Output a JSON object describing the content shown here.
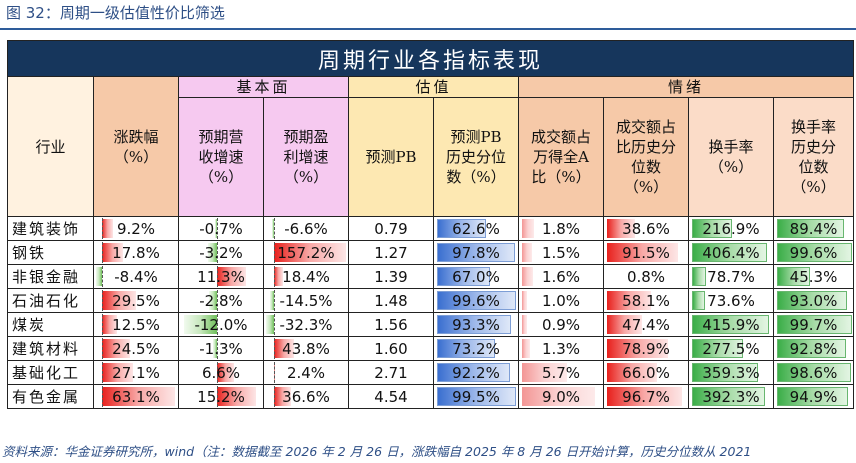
{
  "caption": "图 32：周期一级估值性价比筛选",
  "table": {
    "title": "周期行业各指标表现",
    "groups": {
      "fundamental": "基本面",
      "valuation": "估值",
      "sentiment": "情绪"
    },
    "columns": {
      "industry": "行业",
      "change": "涨跌幅（%）",
      "rev_growth": "预期营收增速（%）",
      "profit_growth": "预期盈利增速（%）",
      "pb": "预测PB",
      "pb_pct": "预测PB历史分位数（%）",
      "turnover_share": "成交额占万得全A比（%）",
      "turnover_share_pct": "成交额占比历史分位数（%）",
      "turnover_rate": "换手率（%）",
      "turnover_rate_pct": "换手率历史分位数（%）"
    },
    "rows": [
      {
        "industry": "建筑装饰",
        "change": "9.2%",
        "rev_growth": "-0.7%",
        "profit_growth": "-6.6%",
        "pb": "0.79",
        "pb_pct": "62.6%",
        "turnover_share": "1.8%",
        "turnover_share_pct": "38.6%",
        "turnover_rate": "216.9%",
        "turnover_rate_pct": "89.4%"
      },
      {
        "industry": "钢铁",
        "change": "17.8%",
        "rev_growth": "-3.2%",
        "profit_growth": "157.2%",
        "pb": "1.27",
        "pb_pct": "97.8%",
        "turnover_share": "1.5%",
        "turnover_share_pct": "91.5%",
        "turnover_rate": "406.4%",
        "turnover_rate_pct": "99.6%"
      },
      {
        "industry": "非银金融",
        "change": "-8.4%",
        "rev_growth": "11.3%",
        "profit_growth": "18.4%",
        "pb": "1.39",
        "pb_pct": "67.0%",
        "turnover_share": "1.6%",
        "turnover_share_pct": "0.8%",
        "turnover_rate": "78.7%",
        "turnover_rate_pct": "45.3%"
      },
      {
        "industry": "石油石化",
        "change": "29.5%",
        "rev_growth": "-2.8%",
        "profit_growth": "-14.5%",
        "pb": "1.48",
        "pb_pct": "99.6%",
        "turnover_share": "1.0%",
        "turnover_share_pct": "58.1%",
        "turnover_rate": "73.6%",
        "turnover_rate_pct": "93.0%"
      },
      {
        "industry": "煤炭",
        "change": "12.5%",
        "rev_growth": "-12.0%",
        "profit_growth": "-32.3%",
        "pb": "1.56",
        "pb_pct": "93.3%",
        "turnover_share": "0.9%",
        "turnover_share_pct": "47.4%",
        "turnover_rate": "415.9%",
        "turnover_rate_pct": "99.7%"
      },
      {
        "industry": "建筑材料",
        "change": "24.5%",
        "rev_growth": "-1.3%",
        "profit_growth": "43.8%",
        "pb": "1.60",
        "pb_pct": "73.2%",
        "turnover_share": "1.3%",
        "turnover_share_pct": "78.9%",
        "turnover_rate": "277.5%",
        "turnover_rate_pct": "92.8%"
      },
      {
        "industry": "基础化工",
        "change": "27.1%",
        "rev_growth": "6.6%",
        "profit_growth": "2.4%",
        "pb": "2.71",
        "pb_pct": "92.2%",
        "turnover_share": "5.7%",
        "turnover_share_pct": "66.0%",
        "turnover_rate": "359.3%",
        "turnover_rate_pct": "98.6%"
      },
      {
        "industry": "有色金属",
        "change": "63.1%",
        "rev_growth": "15.2%",
        "profit_growth": "36.6%",
        "pb": "4.54",
        "pb_pct": "99.5%",
        "turnover_share": "9.0%",
        "turnover_share_pct": "96.7%",
        "turnover_rate": "392.3%",
        "turnover_rate_pct": "94.9%"
      }
    ]
  },
  "footnote": "资料来源：华金证券研究所，wind（注：数据截至 2026 年 2 月 26 日，涨跌幅自 2025 年 8 月 26 日开始计算，历史分位数从 2021",
  "colors": {
    "title_bg": "#16365c",
    "bar_red": "#e8201c",
    "bar_blue": "#3a6fd0",
    "bar_green": "#3bae48"
  }
}
